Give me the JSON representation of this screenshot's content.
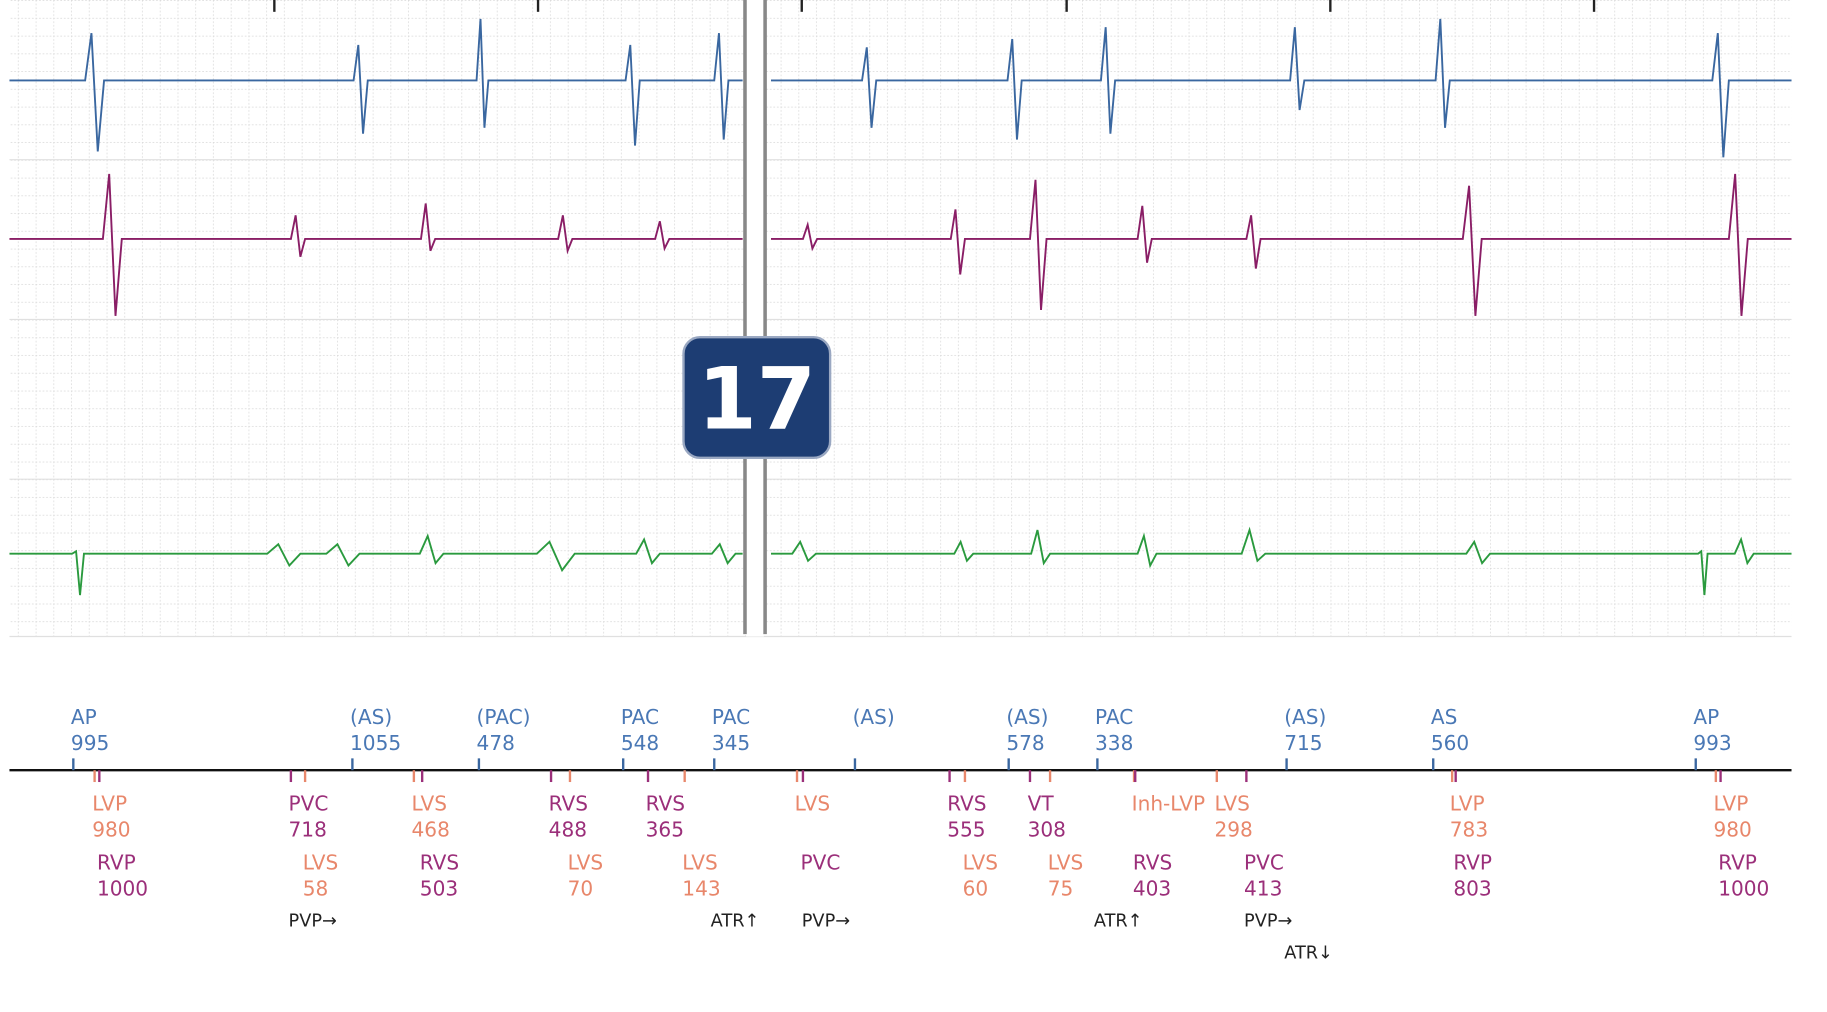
{
  "badge": "17",
  "atrial_markers": [
    {
      "label": "AP",
      "value": 995
    },
    {
      "label": "(AS)",
      "value": 1055
    },
    {
      "label": "(PAC)",
      "value": 478
    },
    {
      "label": "PAC",
      "value": 548
    },
    {
      "label": "PAC",
      "value": 345
    },
    {
      "label": "(AS)"
    },
    {
      "label": "(AS)",
      "value": 578
    },
    {
      "label": "PAC",
      "value": 338
    },
    {
      "label": "(AS)",
      "value": 715
    },
    {
      "label": "AS",
      "value": 560
    },
    {
      "label": "AP",
      "value": 993
    }
  ],
  "ventricular_markers": [
    {
      "label": "LVP",
      "value": 980,
      "color": "#e8876b"
    },
    {
      "label": "PVC",
      "value": 718,
      "color": "#9b2f7a"
    },
    {
      "label": "LVS",
      "value": 468,
      "color": "#e8876b"
    },
    {
      "label": "RVS",
      "value": 488,
      "color": "#9b2f7a"
    },
    {
      "label": "RVS",
      "value": 365,
      "color": "#9b2f7a"
    },
    {
      "label": "LVS",
      "color": "#e8876b"
    },
    {
      "label": "RVS",
      "value": 555,
      "color": "#9b2f7a"
    },
    {
      "label": "VT",
      "value": 308,
      "color": "#9b2f7a"
    },
    {
      "label": "Inh-LVP",
      "color": "#e8876b"
    },
    {
      "label": "LVS",
      "value": 298,
      "color": "#e8876b"
    },
    {
      "label": "LVP",
      "value": 783,
      "color": "#e8876b"
    },
    {
      "label": "LVP",
      "value": 980,
      "color": "#e8876b"
    },
    {
      "label": "RVP",
      "value": 1000,
      "color": "#9b2f7a"
    },
    {
      "label": "LVS",
      "value": 58,
      "color": "#e8876b"
    },
    {
      "label": "RVS",
      "value": 503,
      "color": "#9b2f7a"
    },
    {
      "label": "LVS",
      "value": 70,
      "color": "#e8876b"
    },
    {
      "label": "LVS",
      "value": 143,
      "color": "#e8876b"
    },
    {
      "label": "PVC",
      "color": "#9b2f7a"
    },
    {
      "label": "LVS",
      "value": 60,
      "color": "#e8876b"
    },
    {
      "label": "LVS",
      "value": 75,
      "color": "#e8876b"
    },
    {
      "label": "RVS",
      "value": 403,
      "color": "#9b2f7a"
    },
    {
      "label": "PVC",
      "value": 413,
      "color": "#9b2f7a"
    },
    {
      "label": "RVP",
      "value": 803,
      "color": "#9b2f7a"
    },
    {
      "label": "RVP",
      "value": 1000,
      "color": "#9b2f7a"
    }
  ],
  "annotations": [
    "PVP→",
    "ATR↑",
    "PVP→",
    "ATR↑",
    "PVP→",
    "ATR↓"
  ]
}
